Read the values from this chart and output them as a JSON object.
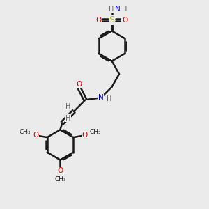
{
  "bg_color": "#ebebeb",
  "bond_color": "#1a1a1a",
  "oxygen_color": "#cc0000",
  "nitrogen_color": "#0000cc",
  "sulfur_color": "#bbbb00",
  "h_color": "#606060",
  "line_width": 1.8,
  "figsize": [
    3.0,
    3.0
  ],
  "dpi": 100,
  "xlim": [
    0,
    10
  ],
  "ylim": [
    0,
    10
  ]
}
